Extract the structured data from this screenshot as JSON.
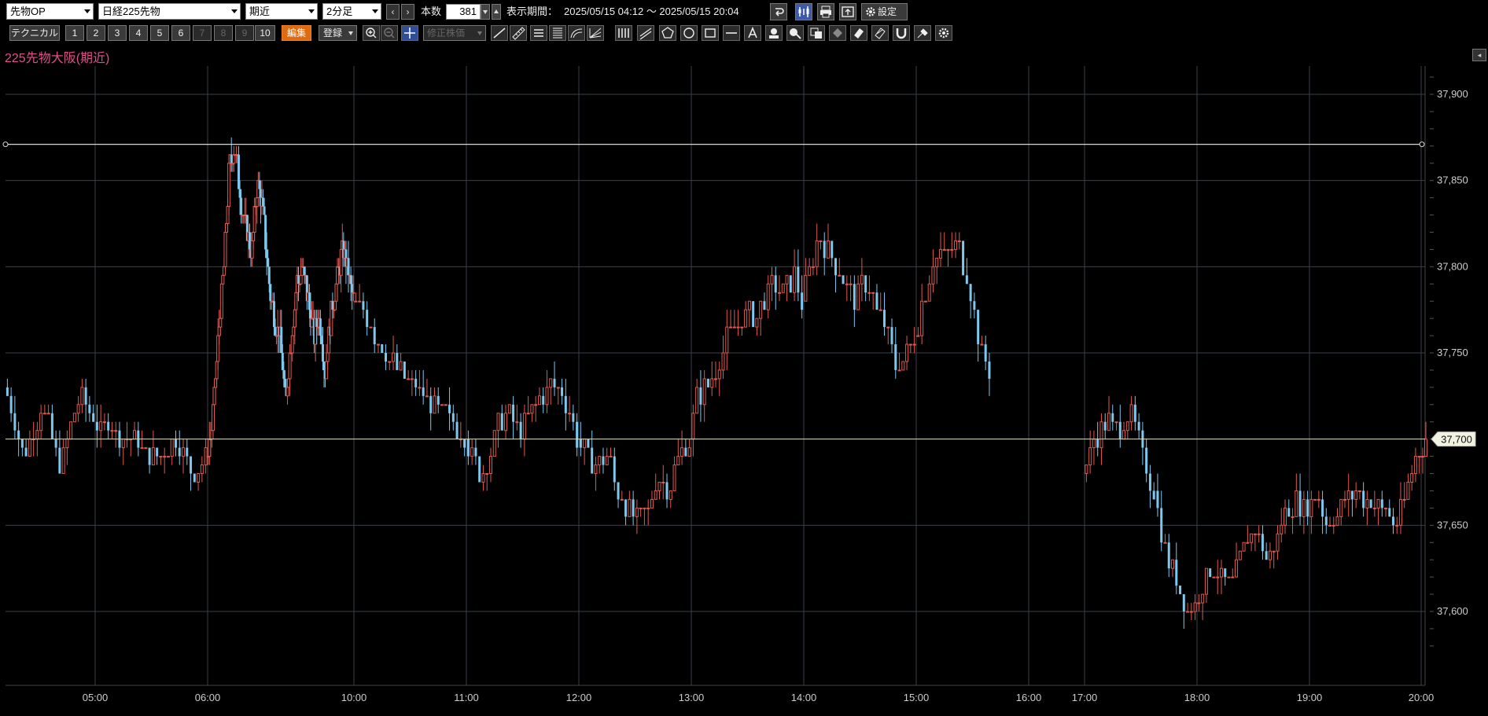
{
  "toolbar": {
    "market_select": "先物OP",
    "product_select": "日経225先物",
    "contract_select": "期近",
    "period_select": "2分足",
    "prev": "‹",
    "next": "›",
    "count_label": "本数",
    "count_value": "381",
    "range_label": "表示期間：",
    "range_value": "2025/05/15 04:12 ～ 2025/05/15 20:04",
    "settings_label": "設定",
    "settings_icon": "gear-icon"
  },
  "toolbar2": {
    "technical": "テクニカル",
    "slots": [
      "1",
      "2",
      "3",
      "4",
      "5",
      "6",
      "7",
      "8",
      "9",
      "10"
    ],
    "edit": "編集",
    "register": "登録",
    "adjusted_price": "修正株価"
  },
  "chart_title": "225先物大阪(期近)",
  "colors": {
    "up": "#e05a50",
    "down": "#7ec8ee",
    "grid": "#3a3f4a",
    "hline": "#d8d8d8",
    "price_tag_bg": "#f2f2e0"
  },
  "chart_data": {
    "type": "candlestick",
    "title": "225先物大阪(期近)",
    "interval": "2分足",
    "bars": 381,
    "x_ticks": [
      "05:00",
      "06:00",
      "10:00",
      "11:00",
      "12:00",
      "13:00",
      "14:00",
      "15:00",
      "16:00",
      "17:00",
      "18:00",
      "19:00",
      "20:00"
    ],
    "y_ticks": [
      "37,900",
      "37,850",
      "37,800",
      "37,750",
      "37,650",
      "37,600"
    ],
    "ylim": [
      37570,
      37930
    ],
    "current_price": 37700,
    "current_price_label": "37,700",
    "horizontal_line": 37871,
    "segments": [
      {
        "from": "04:12",
        "to": "06:00",
        "o": 37730,
        "path": [
          37730,
          37715,
          37690,
          37705,
          37720,
          37700,
          37685,
          37710,
          37725,
          37715,
          37705,
          37710,
          37700,
          37700,
          37698,
          37690,
          37690,
          37692,
          37700,
          37688,
          37680,
          37690
        ]
      },
      {
        "from": "06:00",
        "to": "10:00",
        "o": 37690,
        "path": [
          37690,
          37710,
          37760,
          37800,
          37860,
          37870,
          37840,
          37820,
          37810,
          37850,
          37830,
          37790,
          37770,
          37760,
          37720,
          37760,
          37790,
          37800,
          37780,
          37760,
          37770,
          37740,
          37770,
          37790,
          37810,
          37800,
          37780
        ]
      },
      {
        "from": "10:00",
        "to": "11:00",
        "o": 37780,
        "path": [
          37780,
          37770,
          37750,
          37740,
          37730,
          37720,
          37712,
          37700
        ]
      },
      {
        "from": "11:00",
        "to": "12:00",
        "o": 37700,
        "path": [
          37700,
          37690,
          37680,
          37690,
          37710,
          37715,
          37705,
          37710,
          37720,
          37725,
          37730,
          37728,
          37720,
          37700
        ]
      },
      {
        "from": "12:00",
        "to": "13:00",
        "o": 37700,
        "path": [
          37700,
          37690,
          37685,
          37690,
          37670,
          37660,
          37650,
          37660,
          37680,
          37670,
          37690,
          37700
        ]
      },
      {
        "from": "13:00",
        "to": "14:00",
        "o": 37700,
        "path": [
          37700,
          37725,
          37730,
          37735,
          37745,
          37760,
          37765,
          37770,
          37775,
          37770,
          37780,
          37790,
          37785,
          37790,
          37795,
          37780
        ]
      },
      {
        "from": "14:00",
        "to": "15:00",
        "o": 37780,
        "path": [
          37780,
          37800,
          37820,
          37810,
          37800,
          37790,
          37780,
          37790,
          37785,
          37770,
          37760,
          37740,
          37750,
          37760
        ]
      },
      {
        "from": "15:00",
        "to": "15:40",
        "o": 37760,
        "path": [
          37760,
          37780,
          37800,
          37810,
          37805,
          37815,
          37800,
          37780,
          37750,
          37740
        ]
      },
      {
        "from": "17:00",
        "to": "17:38",
        "o": 37680,
        "path": [
          37680,
          37700,
          37710,
          37705,
          37715,
          37690,
          37670
        ]
      },
      {
        "from": "17:38",
        "to": "18:00",
        "o": 37670,
        "path": [
          37670,
          37650,
          37630,
          37625,
          37610,
          37600,
          37605
        ]
      },
      {
        "from": "18:00",
        "to": "20:04",
        "o": 37605,
        "path": [
          37605,
          37620,
          37625,
          37615,
          37620,
          37640,
          37650,
          37630,
          37640,
          37660,
          37665,
          37660,
          37670,
          37650,
          37655,
          37665,
          37670,
          37665,
          37660,
          37660,
          37650,
          37670,
          37690,
          37700
        ]
      }
    ]
  }
}
